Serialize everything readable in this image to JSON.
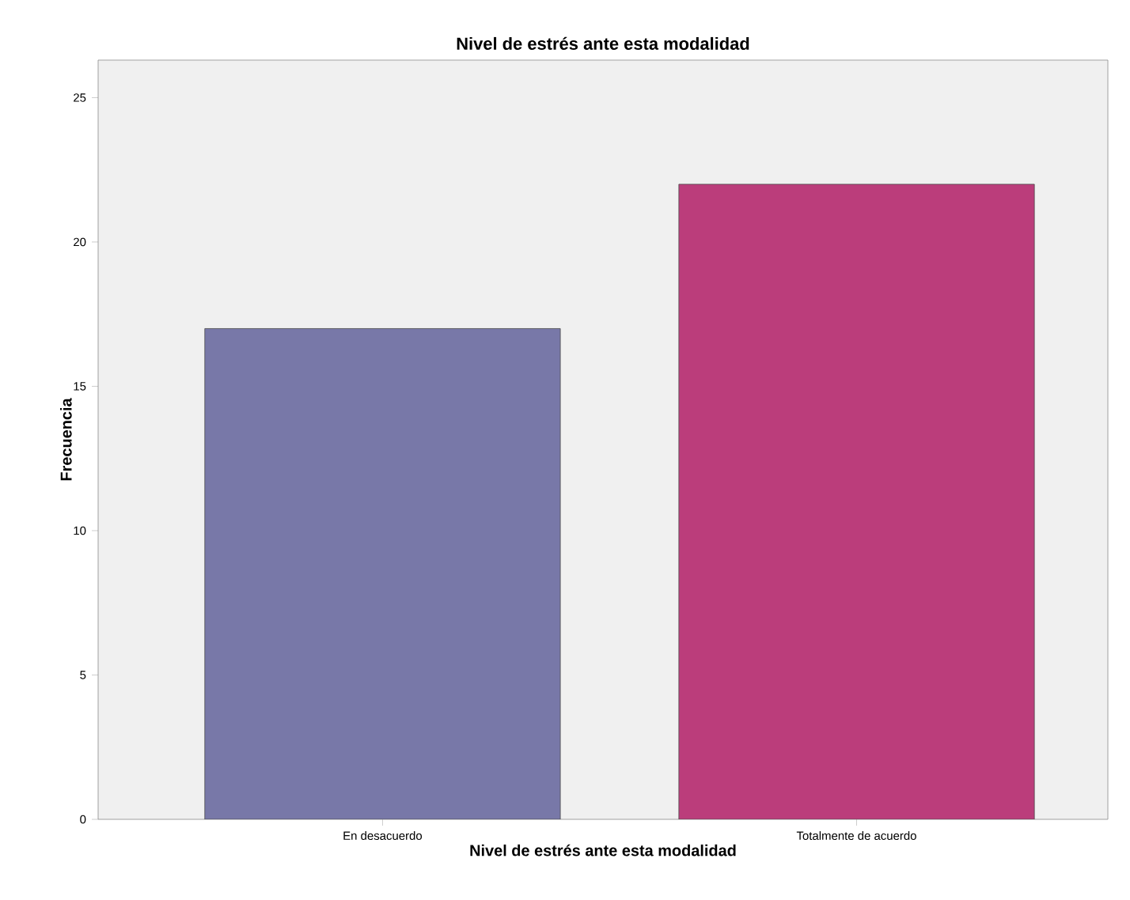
{
  "chart_data": {
    "type": "bar",
    "title": "Nivel de estrés ante esta modalidad",
    "xlabel": "Nivel de estrés ante esta modalidad",
    "ylabel": "Frecuencia",
    "categories": [
      "En desacuerdo",
      "Totalmente de acuerdo"
    ],
    "values": [
      17,
      22
    ],
    "colors": [
      "#7878a8",
      "#bb3d7b"
    ],
    "ylim": [
      0,
      26.3
    ],
    "yticks": [
      0,
      5,
      10,
      15,
      20,
      25
    ],
    "grid": false
  }
}
